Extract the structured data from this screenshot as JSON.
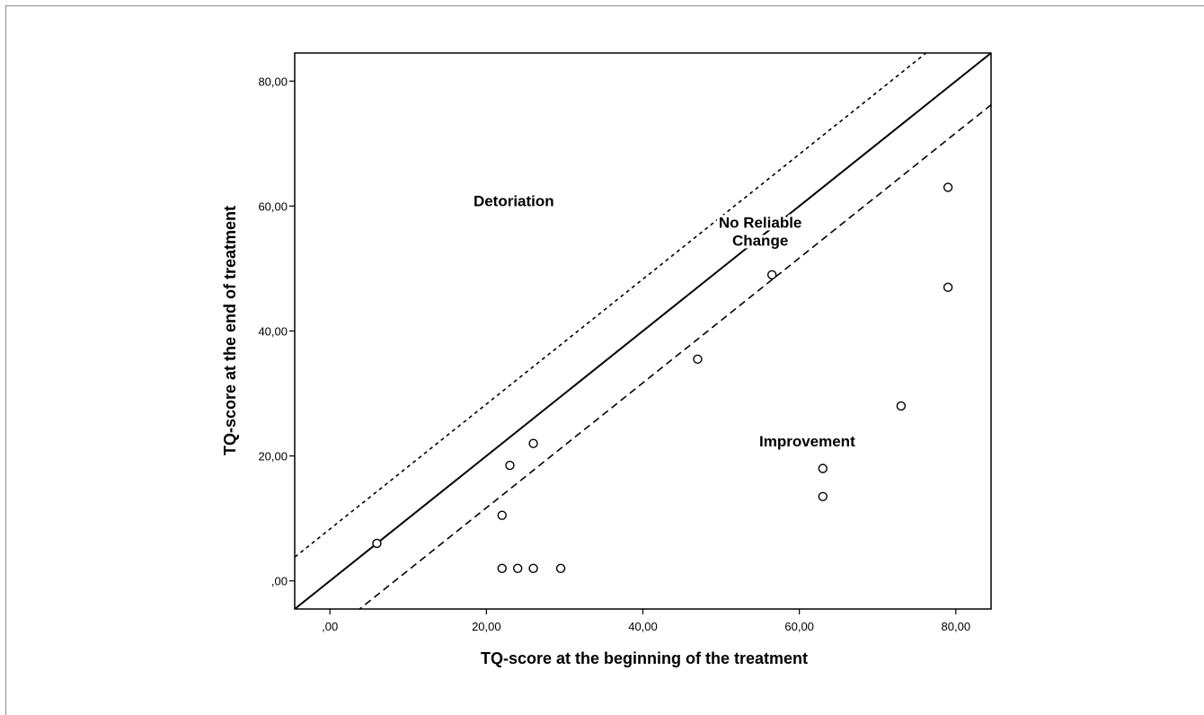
{
  "chart_data": {
    "type": "scatter",
    "title": "",
    "xlabel": "TQ-score at the beginning of the treatment",
    "ylabel": "TQ-score at the end of treatment",
    "xlim": [
      -4.5,
      84.5
    ],
    "ylim": [
      -4.5,
      84.5
    ],
    "x_ticks": [
      0,
      20,
      40,
      60,
      80
    ],
    "y_ticks": [
      0,
      20,
      40,
      60,
      80
    ],
    "x_tick_labels": [
      ",00",
      "20,00",
      "40,00",
      "60,00",
      "80,00"
    ],
    "y_tick_labels": [
      ",00",
      "20,00",
      "40,00",
      "60,00",
      "80,00"
    ],
    "grid": false,
    "points": [
      {
        "x": 6,
        "y": 6
      },
      {
        "x": 22,
        "y": 2
      },
      {
        "x": 22,
        "y": 10.5
      },
      {
        "x": 23,
        "y": 18.5
      },
      {
        "x": 24,
        "y": 2
      },
      {
        "x": 26,
        "y": 2
      },
      {
        "x": 26,
        "y": 22
      },
      {
        "x": 29.5,
        "y": 2
      },
      {
        "x": 47,
        "y": 35.5
      },
      {
        "x": 56.5,
        "y": 49
      },
      {
        "x": 63,
        "y": 13.5
      },
      {
        "x": 63,
        "y": 18
      },
      {
        "x": 73,
        "y": 28
      },
      {
        "x": 79,
        "y": 47
      },
      {
        "x": 79,
        "y": 63
      }
    ],
    "reference_lines": [
      {
        "style": "solid",
        "intercept": 0,
        "slope": 1
      },
      {
        "style": "dotted",
        "intercept": 8.3,
        "slope": 1
      },
      {
        "style": "dashed",
        "intercept": -8.3,
        "slope": 1
      }
    ],
    "annotations": [
      {
        "lines": [
          "Detoriation"
        ],
        "x": 23.5,
        "y": 60
      },
      {
        "lines": [
          "No Reliable",
          "Change"
        ],
        "x": 55,
        "y": 56.5
      },
      {
        "lines": [
          "Improvement"
        ],
        "x": 61,
        "y": 21.5
      }
    ]
  }
}
